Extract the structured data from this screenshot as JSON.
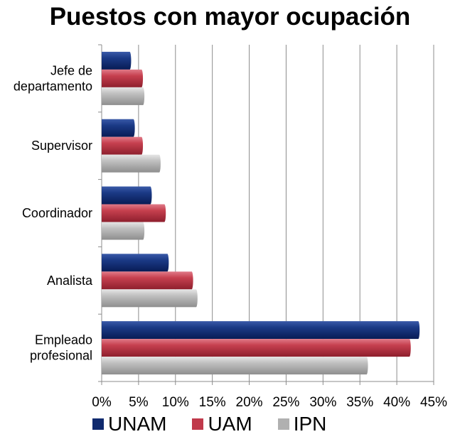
{
  "chart_data": {
    "type": "bar",
    "orientation": "horizontal",
    "title": "Puestos con mayor ocupación",
    "categories": [
      [
        "Jefe de",
        "departamento"
      ],
      [
        "Supervisor"
      ],
      [
        "Coordinador"
      ],
      [
        "Analista"
      ],
      [
        "Empleado",
        "profesional"
      ]
    ],
    "series": [
      {
        "name": "UNAM",
        "values": [
          3.8,
          4.3,
          6.6,
          8.9,
          42.9
        ],
        "color": "#0f2a6e"
      },
      {
        "name": "UAM",
        "values": [
          5.4,
          5.4,
          8.5,
          12.2,
          41.7
        ],
        "color": "#c0394b"
      },
      {
        "name": "IPN",
        "values": [
          5.6,
          7.8,
          5.6,
          12.8,
          35.9
        ],
        "color": "#b0b0b0"
      }
    ],
    "xlim": [
      0,
      45
    ],
    "x_ticks": [
      "0%",
      "5%",
      "10%",
      "15%",
      "20%",
      "25%",
      "30%",
      "35%",
      "40%",
      "45%"
    ],
    "grid": true,
    "legend_position": "bottom"
  }
}
